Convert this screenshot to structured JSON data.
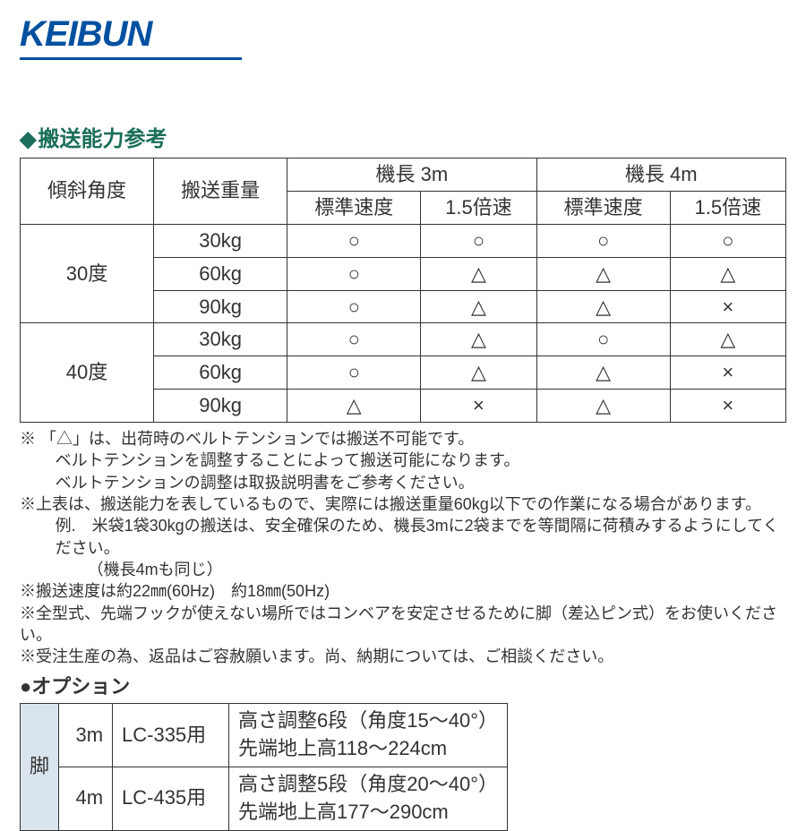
{
  "logo_text": "KEIBUN",
  "section_title": "搬送能力参考",
  "capacity_table": {
    "headers": {
      "angle": "傾斜角度",
      "weight": "搬送重量",
      "len3": "機長 3m",
      "len4": "機長 4m",
      "std_speed": "標準速度",
      "fast_speed": "1.5倍速"
    },
    "groups": [
      {
        "angle": "30度",
        "rows": [
          {
            "weight": "30kg",
            "v": [
              "○",
              "○",
              "○",
              "○"
            ]
          },
          {
            "weight": "60kg",
            "v": [
              "○",
              "△",
              "△",
              "△"
            ]
          },
          {
            "weight": "90kg",
            "v": [
              "○",
              "△",
              "△",
              "×"
            ]
          }
        ]
      },
      {
        "angle": "40度",
        "rows": [
          {
            "weight": "30kg",
            "v": [
              "○",
              "△",
              "○",
              "△"
            ]
          },
          {
            "weight": "60kg",
            "v": [
              "○",
              "△",
              "△",
              "×"
            ]
          },
          {
            "weight": "90kg",
            "v": [
              "△",
              "×",
              "△",
              "×"
            ]
          }
        ]
      }
    ]
  },
  "notes": {
    "n1a": "※ 「△」は、出荷時のベルトテンションでは搬送不可能です。",
    "n1b": "ベルトテンションを調整することによって搬送可能になります。",
    "n1c": "ベルトテンションの調整は取扱説明書をご参考ください。",
    "n2a": "※上表は、搬送能力を表しているもので、実際には搬送重量60kg以下での作業になる場合があります。",
    "n2b": "例.　米袋1袋30kgの搬送は、安全確保のため、機長3mに2袋までを等間隔に荷積みするようにしてください。",
    "n2c": "（機長4mも同じ）",
    "n3": "※搬送速度は約22㎜(60Hz)　約18㎜(50Hz)",
    "n4": "※全型式、先端フックが使えない場所ではコンベアを安定させるために脚（差込ピン式）をお使いください。",
    "n5": "※受注生産の為、返品はご容赦願います。尚、納期については、ご相談ください。"
  },
  "option_title": "●オプション",
  "option_table": {
    "head": "脚",
    "rows": [
      {
        "len": "3m",
        "model": "LC-335用",
        "spec1": "高さ調整6段（角度15～40°）",
        "spec2": "先端地上高118～224cm"
      },
      {
        "len": "4m",
        "model": "LC-435用",
        "spec1": "高さ調整5段（角度20～40°）",
        "spec2": "先端地上高177～290cm"
      }
    ]
  },
  "colors": {
    "brand_blue": "#0050a0",
    "section_green": "#1a6e5a",
    "text": "#333333",
    "border": "#333333",
    "option_head_bg": "#d9e4ee",
    "background": "#ffffff"
  }
}
